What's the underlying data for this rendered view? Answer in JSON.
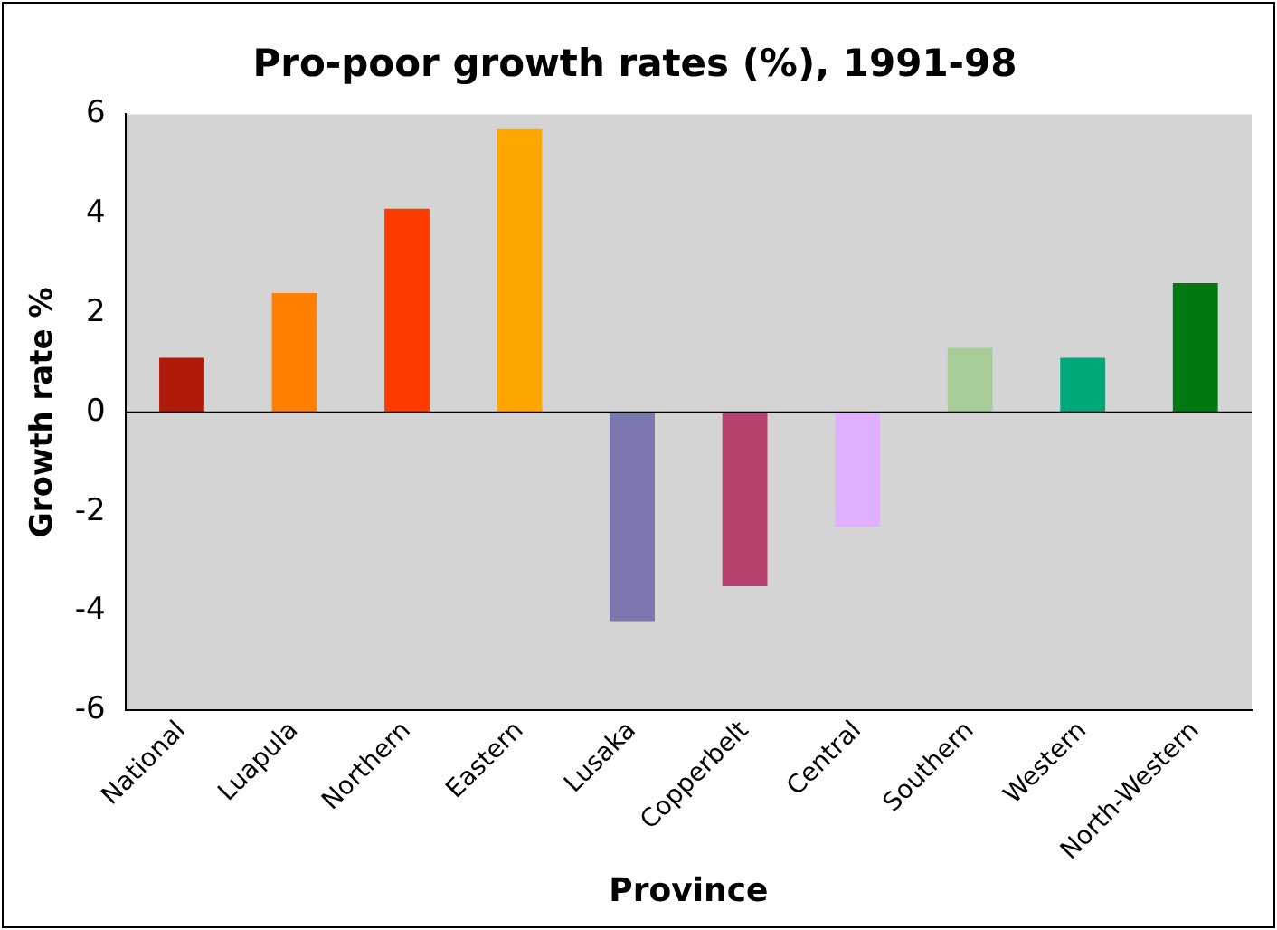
{
  "chart_data": {
    "type": "bar",
    "title": "Pro-poor growth rates (%), 1991-98",
    "xlabel": "Province",
    "ylabel": "Growth rate %",
    "categories": [
      "National",
      "Luapula",
      "Northern",
      "Eastern",
      "Lusaka",
      "Copperbelt",
      "Central",
      "Southern",
      "Western",
      "North-Western"
    ],
    "values": [
      1.1,
      2.4,
      4.1,
      5.7,
      -4.2,
      -3.5,
      -2.3,
      1.3,
      1.1,
      2.6
    ],
    "colors": [
      "#b01a0a",
      "#ff8000",
      "#ff3c00",
      "#ffa500",
      "#7b78b0",
      "#b8406e",
      "#e0b0ff",
      "#a8cc98",
      "#00a87a",
      "#007a10"
    ],
    "ylim": [
      -6,
      6
    ],
    "yticks": [
      -6,
      -4,
      -2,
      0,
      2,
      4,
      6
    ],
    "ref_lines": [
      {
        "axis": "y",
        "value": 0,
        "color": "#000000"
      }
    ],
    "grid": false,
    "legend": false
  }
}
